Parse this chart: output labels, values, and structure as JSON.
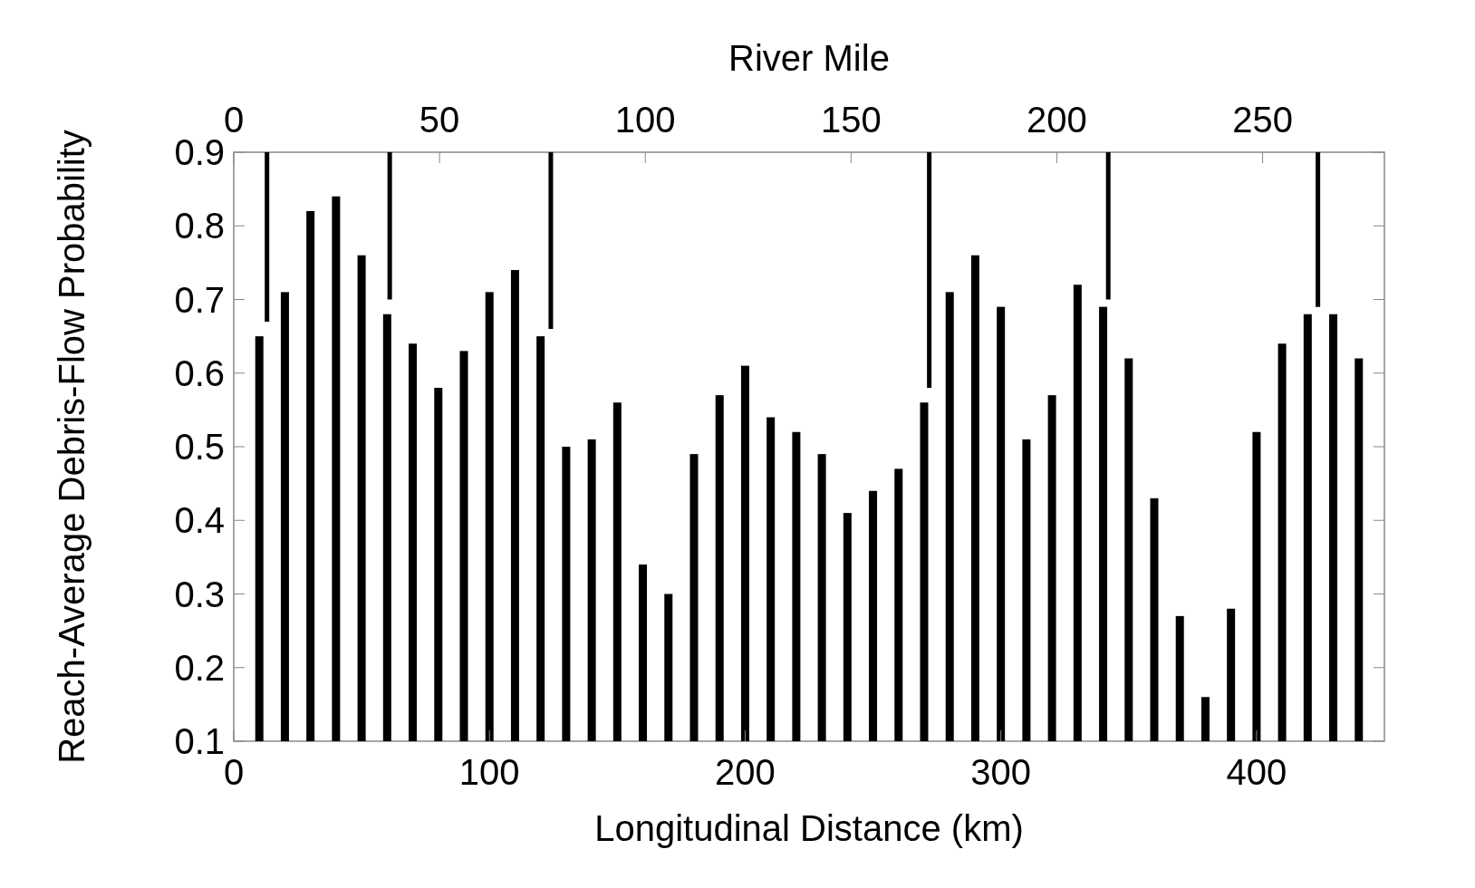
{
  "chart_data": {
    "type": "bar",
    "xlabel": "Longitudinal Distance (km)",
    "ylabel": "Reach-Average Debris-Flow Probability",
    "x2label": "River Mile",
    "xlim": [
      0,
      450
    ],
    "xticks": [
      0,
      100,
      200,
      300,
      400
    ],
    "x2lim": [
      0,
      279.6
    ],
    "x2ticks": [
      0,
      50,
      100,
      150,
      200,
      250
    ],
    "ylim": [
      0.1,
      0.9
    ],
    "yticks": [
      0.1,
      0.2,
      0.3,
      0.4,
      0.5,
      0.6,
      0.7,
      0.8,
      0.9
    ],
    "series": [
      {
        "color": "#000000",
        "x": [
          10,
          20,
          30,
          40,
          50,
          60,
          70,
          80,
          90,
          100,
          110,
          120,
          130,
          140,
          150,
          160,
          170,
          180,
          190,
          200,
          210,
          220,
          230,
          240,
          250,
          260,
          270,
          280,
          290,
          300,
          310,
          320,
          330,
          340,
          350,
          360,
          370,
          380,
          390,
          400,
          410,
          420,
          430,
          440
        ],
        "values": [
          0.65,
          0.71,
          0.82,
          0.84,
          0.76,
          0.68,
          0.64,
          0.58,
          0.63,
          0.71,
          0.74,
          0.65,
          0.5,
          0.51,
          0.56,
          0.34,
          0.3,
          0.49,
          0.57,
          0.61,
          0.54,
          0.52,
          0.49,
          0.41,
          0.44,
          0.47,
          0.56,
          0.71,
          0.76,
          0.69,
          0.51,
          0.57,
          0.72,
          0.69,
          0.62,
          0.43,
          0.27,
          0.16,
          0.28,
          0.52,
          0.64,
          0.68,
          0.68,
          0.62
        ]
      },
      {
        "type": "line",
        "color": "#000000",
        "x": [
          13,
          13
        ],
        "values": [
          0.9,
          0.67
        ]
      },
      {
        "type": "line",
        "color": "#000000",
        "x": [
          61,
          61
        ],
        "values": [
          0.9,
          0.7
        ]
      },
      {
        "type": "line",
        "color": "#000000",
        "x": [
          124,
          124
        ],
        "values": [
          0.9,
          0.66
        ]
      },
      {
        "type": "line",
        "color": "#000000",
        "x": [
          272,
          272
        ],
        "values": [
          0.9,
          0.58
        ]
      },
      {
        "type": "line",
        "color": "#000000",
        "x": [
          342,
          342
        ],
        "values": [
          0.9,
          0.7
        ]
      },
      {
        "type": "line",
        "color": "#000000",
        "x": [
          424,
          424
        ],
        "values": [
          0.9,
          0.69
        ]
      }
    ]
  }
}
